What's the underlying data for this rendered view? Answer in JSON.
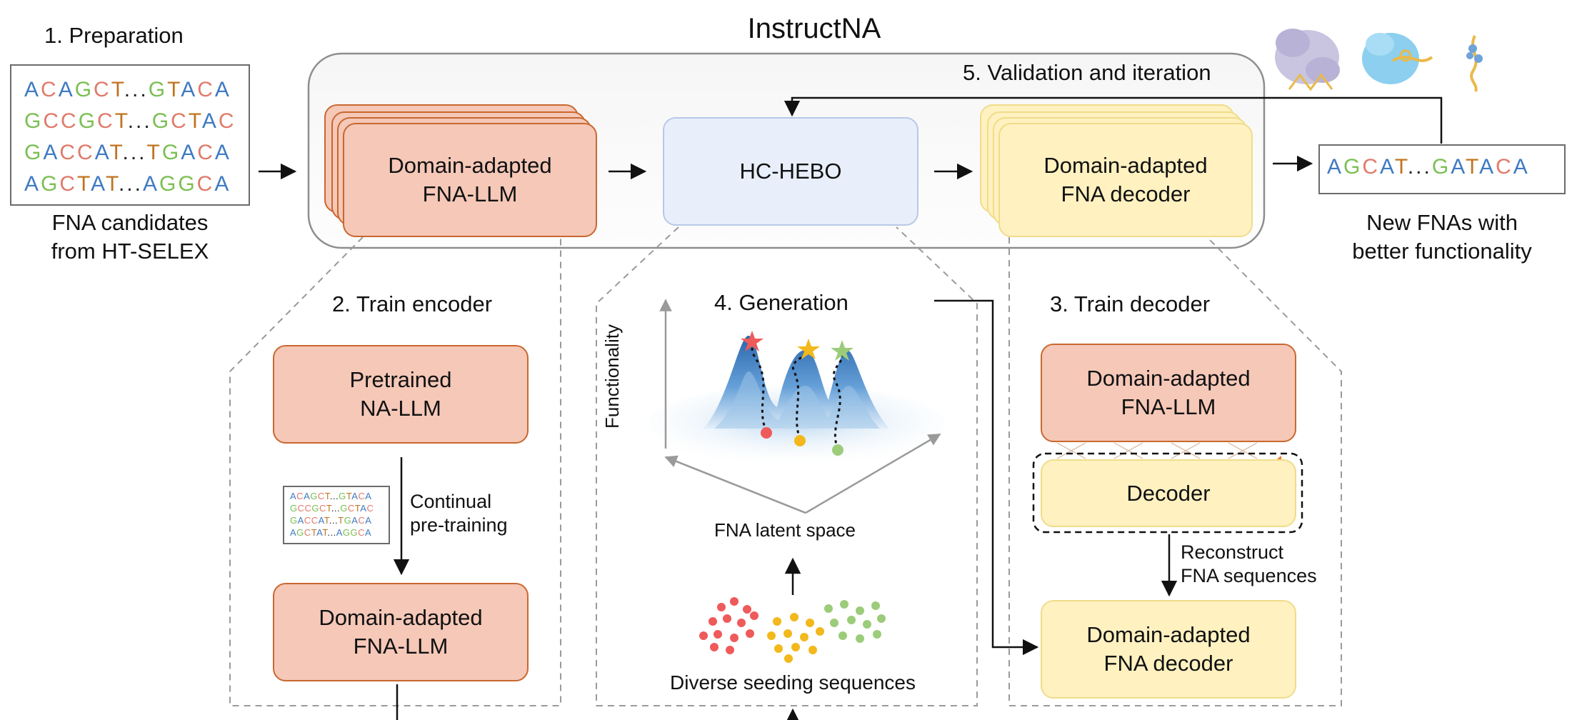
{
  "title": "InstructNA",
  "preparation": {
    "heading": "1. Preparation",
    "sequences": [
      [
        [
          "A",
          "b"
        ],
        [
          "C",
          "r"
        ],
        [
          "A",
          "b"
        ],
        [
          "G",
          "g"
        ],
        [
          "C",
          "r"
        ],
        [
          "T",
          "o"
        ],
        [
          "...",
          "k"
        ],
        [
          "G",
          "g"
        ],
        [
          "T",
          "o"
        ],
        [
          "A",
          "b"
        ],
        [
          "C",
          "r"
        ],
        [
          "A",
          "b"
        ]
      ],
      [
        [
          "G",
          "g"
        ],
        [
          "C",
          "r"
        ],
        [
          "C",
          "r"
        ],
        [
          "G",
          "g"
        ],
        [
          "C",
          "r"
        ],
        [
          "T",
          "o"
        ],
        [
          "...",
          "k"
        ],
        [
          "G",
          "g"
        ],
        [
          "C",
          "r"
        ],
        [
          "T",
          "o"
        ],
        [
          "A",
          "b"
        ],
        [
          "C",
          "r"
        ]
      ],
      [
        [
          "G",
          "g"
        ],
        [
          "A",
          "b"
        ],
        [
          "C",
          "r"
        ],
        [
          "C",
          "r"
        ],
        [
          "A",
          "b"
        ],
        [
          "T",
          "o"
        ],
        [
          "...",
          "k"
        ],
        [
          "T",
          "o"
        ],
        [
          "G",
          "g"
        ],
        [
          "A",
          "b"
        ],
        [
          "C",
          "r"
        ],
        [
          "A",
          "b"
        ]
      ],
      [
        [
          "A",
          "b"
        ],
        [
          "G",
          "g"
        ],
        [
          "C",
          "r"
        ],
        [
          "T",
          "o"
        ],
        [
          "A",
          "b"
        ],
        [
          "T",
          "o"
        ],
        [
          "...",
          "k"
        ],
        [
          "A",
          "b"
        ],
        [
          "G",
          "g"
        ],
        [
          "G",
          "g"
        ],
        [
          "C",
          "r"
        ],
        [
          "A",
          "b"
        ]
      ]
    ],
    "caption_line1": "FNA candidates",
    "caption_line2": "from HT-SELEX"
  },
  "pipeline": {
    "llm_line1": "Domain-adapted",
    "llm_line2": "FNA-LLM",
    "hebo": "HC-HEBO",
    "decoder_line1": "Domain-adapted",
    "decoder_line2": "FNA decoder",
    "validation": "5. Validation and iteration"
  },
  "output": {
    "sequence": [
      [
        "A",
        "b"
      ],
      [
        "G",
        "g"
      ],
      [
        "C",
        "r"
      ],
      [
        "A",
        "b"
      ],
      [
        "T",
        "o"
      ],
      [
        "...",
        "k"
      ],
      [
        "G",
        "g"
      ],
      [
        "A",
        "b"
      ],
      [
        "T",
        "o"
      ],
      [
        "A",
        "b"
      ],
      [
        "C",
        "r"
      ],
      [
        "A",
        "b"
      ]
    ],
    "caption_line1": "New FNAs with",
    "caption_line2": "better functionality"
  },
  "train_encoder": {
    "heading": "2. Train encoder",
    "pretrained_line1": "Pretrained",
    "pretrained_line2": "NA-LLM",
    "note_line1": "Continual",
    "note_line2": "pre-training",
    "mini_sequences": [
      [
        [
          "A",
          "b"
        ],
        [
          "C",
          "r"
        ],
        [
          "A",
          "b"
        ],
        [
          "G",
          "g"
        ],
        [
          "C",
          "r"
        ],
        [
          "T",
          "o"
        ],
        [
          "...",
          "k"
        ],
        [
          "G",
          "g"
        ],
        [
          "T",
          "o"
        ],
        [
          "A",
          "b"
        ],
        [
          "C",
          "r"
        ],
        [
          "A",
          "b"
        ]
      ],
      [
        [
          "G",
          "g"
        ],
        [
          "C",
          "r"
        ],
        [
          "C",
          "r"
        ],
        [
          "G",
          "g"
        ],
        [
          "C",
          "r"
        ],
        [
          "T",
          "o"
        ],
        [
          "...",
          "k"
        ],
        [
          "G",
          "g"
        ],
        [
          "C",
          "r"
        ],
        [
          "T",
          "o"
        ],
        [
          "A",
          "b"
        ],
        [
          "C",
          "r"
        ]
      ],
      [
        [
          "G",
          "g"
        ],
        [
          "A",
          "b"
        ],
        [
          "C",
          "r"
        ],
        [
          "C",
          "r"
        ],
        [
          "A",
          "b"
        ],
        [
          "T",
          "o"
        ],
        [
          "...",
          "k"
        ],
        [
          "T",
          "o"
        ],
        [
          "G",
          "g"
        ],
        [
          "A",
          "b"
        ],
        [
          "C",
          "r"
        ],
        [
          "A",
          "b"
        ]
      ],
      [
        [
          "A",
          "b"
        ],
        [
          "G",
          "g"
        ],
        [
          "C",
          "r"
        ],
        [
          "T",
          "o"
        ],
        [
          "A",
          "b"
        ],
        [
          "T",
          "o"
        ],
        [
          "...",
          "k"
        ],
        [
          "A",
          "b"
        ],
        [
          "G",
          "g"
        ],
        [
          "G",
          "g"
        ],
        [
          "C",
          "r"
        ],
        [
          "A",
          "b"
        ]
      ]
    ],
    "adapted_line1": "Domain-adapted",
    "adapted_line2": "FNA-LLM"
  },
  "generation": {
    "heading": "4. Generation",
    "y_axis": "Functionality",
    "latent_label": "FNA latent space",
    "seeding_label": "Diverse seeding sequences"
  },
  "train_decoder": {
    "heading": "3. Train decoder",
    "llm_line1": "Domain-adapted",
    "llm_line2": "FNA-LLM",
    "decoder": "Decoder",
    "note_line1": "Reconstruct",
    "note_line2": "FNA sequences",
    "out_line1": "Domain-adapted",
    "out_line2": "FNA decoder"
  },
  "colors": {
    "salmon_fill": "#f5c8b8",
    "salmon_border": "#c9682f",
    "yellow_fill": "#fff1c0",
    "blue_fill": "#e8effb",
    "seed_red": "#ef5a5a",
    "seed_yellow": "#f2b81c",
    "seed_green": "#9ccc7a"
  }
}
